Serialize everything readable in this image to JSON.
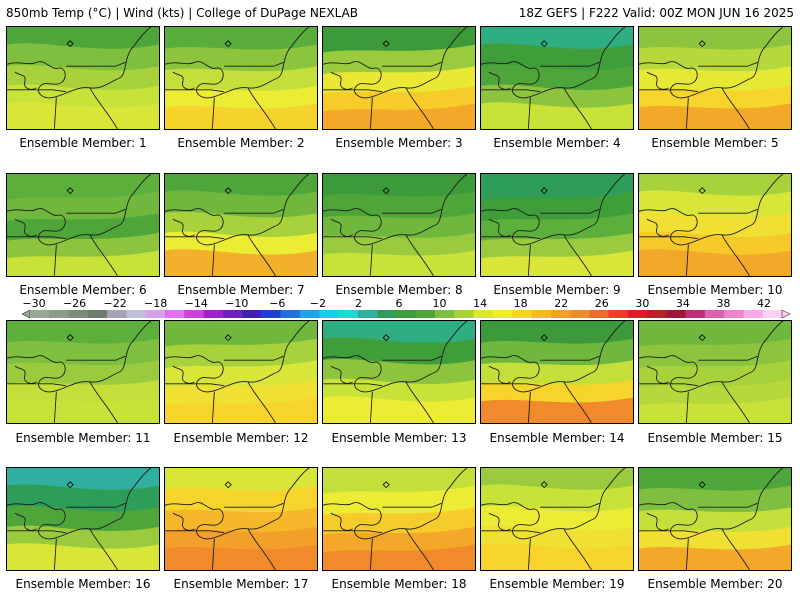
{
  "header": {
    "left": "850mb Temp (°C) | Wind (kts) | College of DuPage NEXLAB",
    "right": "18Z GEFS | F222 Valid: 00Z MON JUN 16 2025"
  },
  "caption_prefix": "Ensemble Member: ",
  "members": [
    {
      "id": "1",
      "bands": [
        "#4ea63a",
        "#7fbf3f",
        "#a8d23c",
        "#c9e23a",
        "#d8e63a"
      ]
    },
    {
      "id": "2",
      "bands": [
        "#58ad3b",
        "#8cc43e",
        "#c4df3a",
        "#ecec35",
        "#f5d22c"
      ]
    },
    {
      "id": "3",
      "bands": [
        "#3d9a3a",
        "#9acb3e",
        "#eae834",
        "#f6cc2a",
        "#f3a82a"
      ]
    },
    {
      "id": "4",
      "bands": [
        "#2fae82",
        "#3f9d3a",
        "#4ea63a",
        "#8cc43e",
        "#c9e23a"
      ]
    },
    {
      "id": "5",
      "bands": [
        "#8cc43e",
        "#b6d83c",
        "#e5e835",
        "#f6d42b",
        "#f3a82a"
      ]
    },
    {
      "id": "6",
      "bands": [
        "#5daf3c",
        "#6fb83d",
        "#4ea63a",
        "#8cc43e",
        "#c9e23a"
      ]
    },
    {
      "id": "7",
      "bands": [
        "#4ea63a",
        "#6fb83d",
        "#a8d23c",
        "#ecec35",
        "#f3b02a"
      ]
    },
    {
      "id": "8",
      "bands": [
        "#3d9a3a",
        "#4ea63a",
        "#6fb83d",
        "#9acb3e",
        "#c9e23a"
      ]
    },
    {
      "id": "9",
      "bands": [
        "#2f9d5a",
        "#3f9d3a",
        "#5daf3c",
        "#9acb3e",
        "#d8e63a"
      ]
    },
    {
      "id": "10",
      "bands": [
        "#a8d23c",
        "#d8e63a",
        "#f0e034",
        "#f6c82a",
        "#f3a82a"
      ]
    },
    {
      "id": "11",
      "bands": [
        "#5daf3c",
        "#7fbf3f",
        "#9acb3e",
        "#c4df3a",
        "#c9e23a"
      ]
    },
    {
      "id": "12",
      "bands": [
        "#6fb83d",
        "#a8d23c",
        "#d8e63a",
        "#f0e034",
        "#f6d42b"
      ]
    },
    {
      "id": "13",
      "bands": [
        "#2fae82",
        "#3f9d3a",
        "#8cc43e",
        "#c9e23a",
        "#ecec35"
      ]
    },
    {
      "id": "14",
      "bands": [
        "#3d9a3a",
        "#6fb83d",
        "#c4df3a",
        "#f6d42b",
        "#f08a2a"
      ]
    },
    {
      "id": "15",
      "bands": [
        "#6fb83d",
        "#8cc43e",
        "#a8d23c",
        "#b6d83c",
        "#c9e23a"
      ]
    },
    {
      "id": "16",
      "bands": [
        "#2fb0a0",
        "#2f9d5a",
        "#4ea63a",
        "#9acb3e",
        "#d8e63a"
      ]
    },
    {
      "id": "17",
      "bands": [
        "#d8e63a",
        "#f6d42b",
        "#f6b82a",
        "#f3a02a",
        "#f08a2a"
      ]
    },
    {
      "id": "18",
      "bands": [
        "#c4df3a",
        "#ecec35",
        "#f6cc2a",
        "#f3a82a",
        "#f08a2a"
      ]
    },
    {
      "id": "19",
      "bands": [
        "#9acb3e",
        "#c9e23a",
        "#ecec35",
        "#f0e034",
        "#f6d42b"
      ]
    },
    {
      "id": "20",
      "bands": [
        "#4ea63a",
        "#7fbf3f",
        "#c4df3a",
        "#f0e034",
        "#f3a82a"
      ]
    }
  ],
  "colorbar": {
    "labels": [
      "−30",
      "−26",
      "−22",
      "−18",
      "−14",
      "−10",
      "−6",
      "−2",
      "2",
      "6",
      "10",
      "14",
      "18",
      "22",
      "26",
      "30",
      "34",
      "38",
      "42"
    ],
    "colors": [
      "#9aa89a",
      "#8c9a8c",
      "#7c8a7c",
      "#6e7c6e",
      "#a4a4b4",
      "#c0c0d8",
      "#d8a0e8",
      "#e070f0",
      "#d040e0",
      "#a020d0",
      "#7020c0",
      "#4020b0",
      "#2040d0",
      "#2070e0",
      "#20a0f0",
      "#20c8f0",
      "#20d8d0",
      "#2fb0a0",
      "#2f9d5a",
      "#3f9d3a",
      "#4ea63a",
      "#7fbf3f",
      "#a8d23c",
      "#d8e63a",
      "#ecec35",
      "#f6d42b",
      "#f6b82a",
      "#f3a02a",
      "#f08a2a",
      "#ee6a2a",
      "#e8402a",
      "#d8202a",
      "#b8202a",
      "#a01838",
      "#c03078",
      "#e060b0",
      "#f080d0",
      "#f8a8e8",
      "#ffd0f4"
    ]
  }
}
